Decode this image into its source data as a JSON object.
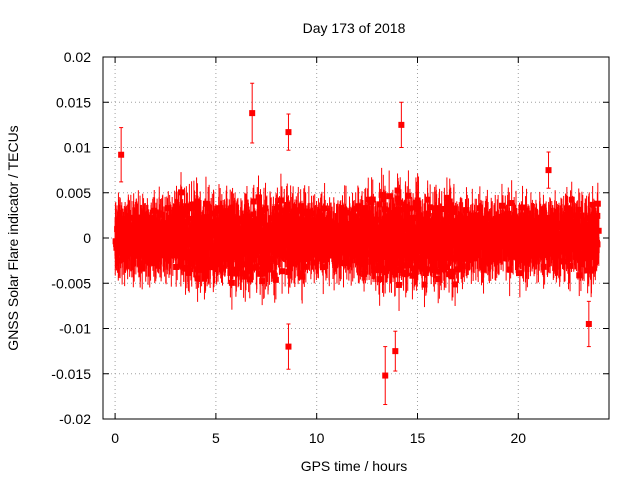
{
  "chart_data": {
    "type": "scatter",
    "title": "Day 173 of 2018",
    "xlabel": "GPS time / hours",
    "ylabel": "GNSS Solar Flare indicator / TECUs",
    "xlim": [
      -0.6,
      24.5
    ],
    "ylim": [
      -0.02,
      0.02
    ],
    "x_ticks": [
      0,
      5,
      10,
      15,
      20
    ],
    "x_tick_labels": [
      "0",
      "5",
      "10",
      "15",
      "20"
    ],
    "y_ticks": [
      0.02,
      0.015,
      0.01,
      0.005,
      0,
      -0.005,
      -0.01,
      -0.015,
      -0.02
    ],
    "y_tick_labels": [
      "0.02",
      "0.015",
      "0.01",
      "0.005",
      "0",
      "-0.005",
      "-0.01",
      "-0.015",
      "-0.02"
    ],
    "grid": true,
    "series": [
      {
        "name": "solar flare indicator",
        "color": "#ff0000",
        "marker": "square",
        "error_bars": true,
        "x_range": [
          0,
          24
        ],
        "sample_interval_hours": 0.0083,
        "typical_range": [
          -0.006,
          0.006
        ],
        "notable_points": [
          {
            "x": 6.8,
            "y": 0.0138,
            "err": 0.0033
          },
          {
            "x": 8.6,
            "y": 0.0117,
            "err": 0.002
          },
          {
            "x": 13.4,
            "y": -0.0152,
            "err": 0.0032
          },
          {
            "x": 14.2,
            "y": 0.0125,
            "err": 0.0025
          },
          {
            "x": 8.6,
            "y": -0.012,
            "err": 0.0025
          },
          {
            "x": 13.9,
            "y": -0.0125,
            "err": 0.0022
          },
          {
            "x": 0.3,
            "y": 0.0092,
            "err": 0.003
          },
          {
            "x": 21.5,
            "y": 0.0075,
            "err": 0.002
          },
          {
            "x": 23.5,
            "y": -0.0095,
            "err": 0.0025
          }
        ]
      }
    ]
  }
}
